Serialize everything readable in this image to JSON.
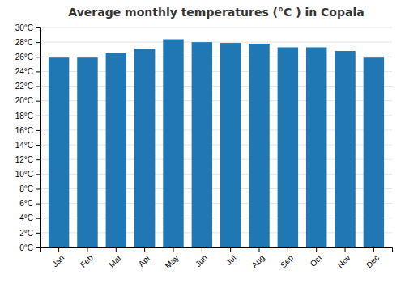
{
  "chart_data": {
    "type": "bar",
    "title": "Average monthly temperatures (°C ) in Copala",
    "categories": [
      "Jan",
      "Feb",
      "Mar",
      "Apr",
      "May",
      "Jun",
      "Jul",
      "Aug",
      "Sep",
      "Oct",
      "Nov",
      "Dec"
    ],
    "values": [
      25.9,
      25.9,
      26.5,
      27.1,
      28.4,
      28.0,
      27.9,
      27.8,
      27.3,
      27.3,
      26.8,
      25.9
    ],
    "ylim": [
      0,
      30
    ],
    "yticks": [
      {
        "value": 0,
        "label": "0°C"
      },
      {
        "value": 2,
        "label": "2°C"
      },
      {
        "value": 4,
        "label": "4°C"
      },
      {
        "value": 6,
        "label": "6°C"
      },
      {
        "value": 8,
        "label": "8°C"
      },
      {
        "value": 10,
        "label": "10°C"
      },
      {
        "value": 12,
        "label": "12°C"
      },
      {
        "value": 14,
        "label": "14°C"
      },
      {
        "value": 16,
        "label": "16°C"
      },
      {
        "value": 18,
        "label": "18°C"
      },
      {
        "value": 20,
        "label": "20°C"
      },
      {
        "value": 22,
        "label": "22°C"
      },
      {
        "value": 24,
        "label": "24°C"
      },
      {
        "value": 26,
        "label": "26°C"
      },
      {
        "value": 28,
        "label": "28°C"
      },
      {
        "value": 30,
        "label": "30°C"
      }
    ],
    "grid": true
  }
}
